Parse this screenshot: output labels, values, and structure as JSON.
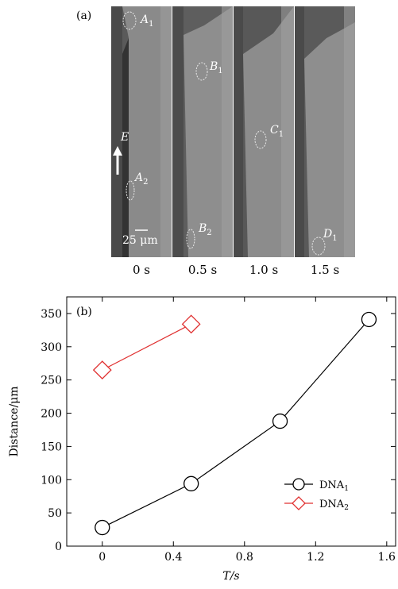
{
  "panel_a": {
    "label": "(a)",
    "frames": [
      "0 s",
      "0.5 s",
      "1.0 s",
      "1.5 s"
    ],
    "cells": {
      "a1": {
        "letter": "A",
        "sub": "1"
      },
      "a2": {
        "letter": "A",
        "sub": "2"
      },
      "b1": {
        "letter": "B",
        "sub": "1"
      },
      "b2": {
        "letter": "B",
        "sub": "2"
      },
      "c1": {
        "letter": "C",
        "sub": "1"
      },
      "d1": {
        "letter": "D",
        "sub": "1"
      }
    },
    "field_label": "E",
    "scale_bar": "25 μm"
  },
  "chart_data": {
    "type": "line",
    "panel_label": "(b)",
    "xlabel": "T/s",
    "ylabel": "Distance/μm",
    "xlim": [
      -0.2,
      1.65
    ],
    "ylim": [
      0,
      375
    ],
    "xticks": [
      0,
      0.4,
      0.8,
      1.2,
      1.6
    ],
    "xtick_labels": [
      "0",
      "0.4",
      "0.8",
      "1.2",
      "1.6"
    ],
    "yticks": [
      0,
      50,
      100,
      150,
      200,
      250,
      300,
      350
    ],
    "ytick_labels": [
      "0",
      "50",
      "100",
      "150",
      "200",
      "250",
      "300",
      "350"
    ],
    "legend_position": "right",
    "grid": false,
    "series": [
      {
        "name": "DNA",
        "name_sub": "1",
        "marker": "circle",
        "color": "#000000",
        "x": [
          0,
          0.5,
          1.0,
          1.5
        ],
        "y": [
          28,
          94,
          188,
          341
        ]
      },
      {
        "name": "DNA",
        "name_sub": "2",
        "marker": "diamond",
        "color": "#e03030",
        "x": [
          0,
          0.5
        ],
        "y": [
          265,
          334
        ]
      }
    ]
  }
}
